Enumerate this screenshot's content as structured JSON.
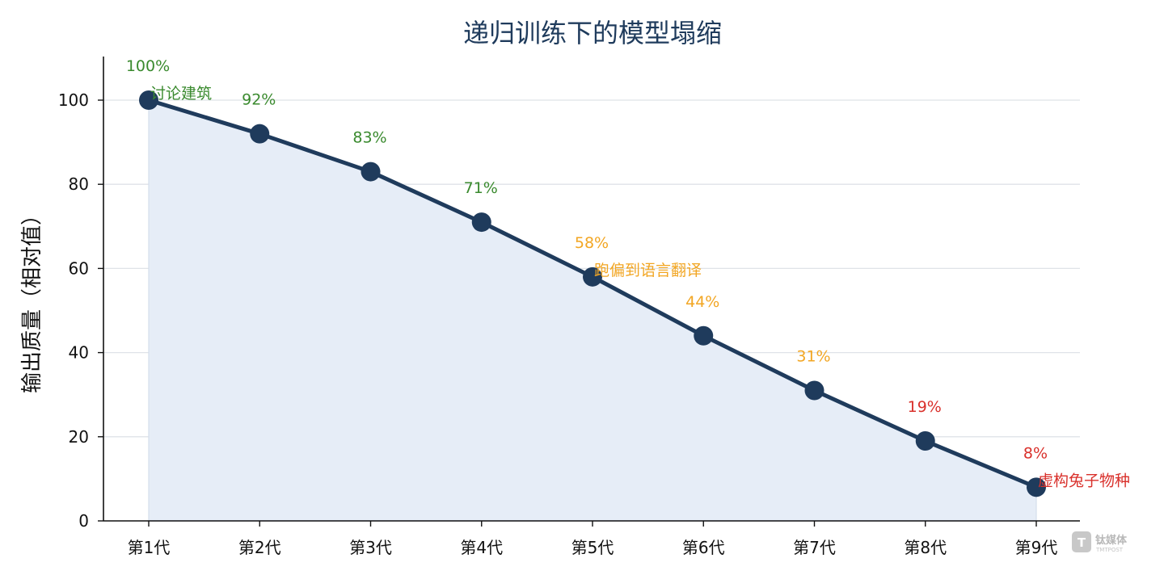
{
  "chart_data": {
    "type": "line",
    "title": "递归训练下的模型塌缩",
    "xlabel": "",
    "ylabel": "输出质量（相对值）",
    "categories": [
      "第1代",
      "第2代",
      "第3代",
      "第4代",
      "第5代",
      "第6代",
      "第7代",
      "第8代",
      "第9代"
    ],
    "values": [
      100,
      92,
      83,
      71,
      58,
      44,
      31,
      19,
      8
    ],
    "data_labels": [
      "100%",
      "92%",
      "83%",
      "71%",
      "58%",
      "44%",
      "31%",
      "19%",
      "8%"
    ],
    "ylim": [
      0,
      110
    ],
    "yticks": [
      "0",
      "20",
      "40",
      "60",
      "80",
      "100"
    ],
    "ytick_values": [
      0,
      20,
      40,
      60,
      80,
      100
    ],
    "grid": "horizontal",
    "annotations": [
      {
        "index": 0,
        "text": "讨论建筑",
        "color": "#3a8a2e"
      },
      {
        "index": 4,
        "text": "跑偏到语言翻译",
        "color": "#f2a623"
      },
      {
        "index": 8,
        "text": "虚构兔子物种",
        "color": "#d9302b"
      }
    ],
    "colors": {
      "line": "#1f3b5c",
      "fill": "#e6edf7",
      "green": "#3a8a2e",
      "orange": "#f2a623",
      "red": "#d9302b",
      "title": "#1f3b5c"
    }
  },
  "watermark": {
    "text": "钛媒体",
    "sub": "TMTPOST"
  }
}
